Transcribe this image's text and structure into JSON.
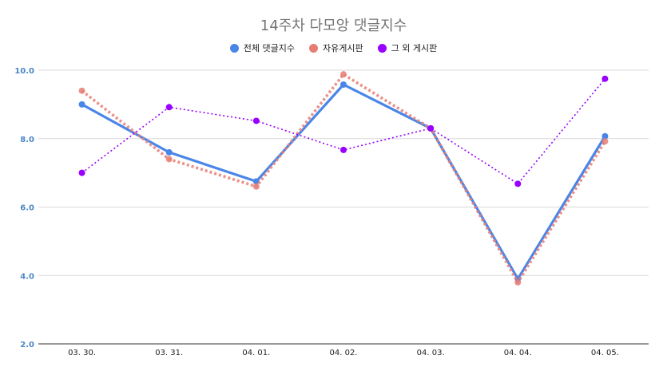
{
  "chart_data": {
    "type": "line",
    "title": "14주차 다모앙 댓글지수",
    "xlabel": "",
    "ylabel": "",
    "categories": [
      "03. 30.",
      "03. 31.",
      "04. 01.",
      "04. 02.",
      "04. 03.",
      "04. 04.",
      "04. 05."
    ],
    "ylim": [
      2.0,
      10.0
    ],
    "yticks": [
      "2.0",
      "4.0",
      "6.0",
      "8.0",
      "10.0"
    ],
    "ytick_values": [
      2,
      4,
      6,
      8,
      10
    ],
    "grid": true,
    "legend_position": "top-center",
    "series": [
      {
        "name": "전체 댓글지수",
        "color": "#4a86e8",
        "style": "solid",
        "values": [
          9.0,
          7.6,
          6.75,
          9.58,
          8.3,
          3.9,
          8.07
        ]
      },
      {
        "name": "자유게시판",
        "color": "#e67c73",
        "style": "dotted-thick",
        "values": [
          9.4,
          7.4,
          6.6,
          9.88,
          8.3,
          3.8,
          7.92
        ]
      },
      {
        "name": "그 외 게시판",
        "color": "#9900ff",
        "style": "dotted-thin",
        "values": [
          7.0,
          8.92,
          8.52,
          7.67,
          8.3,
          6.68,
          9.75
        ]
      }
    ]
  }
}
